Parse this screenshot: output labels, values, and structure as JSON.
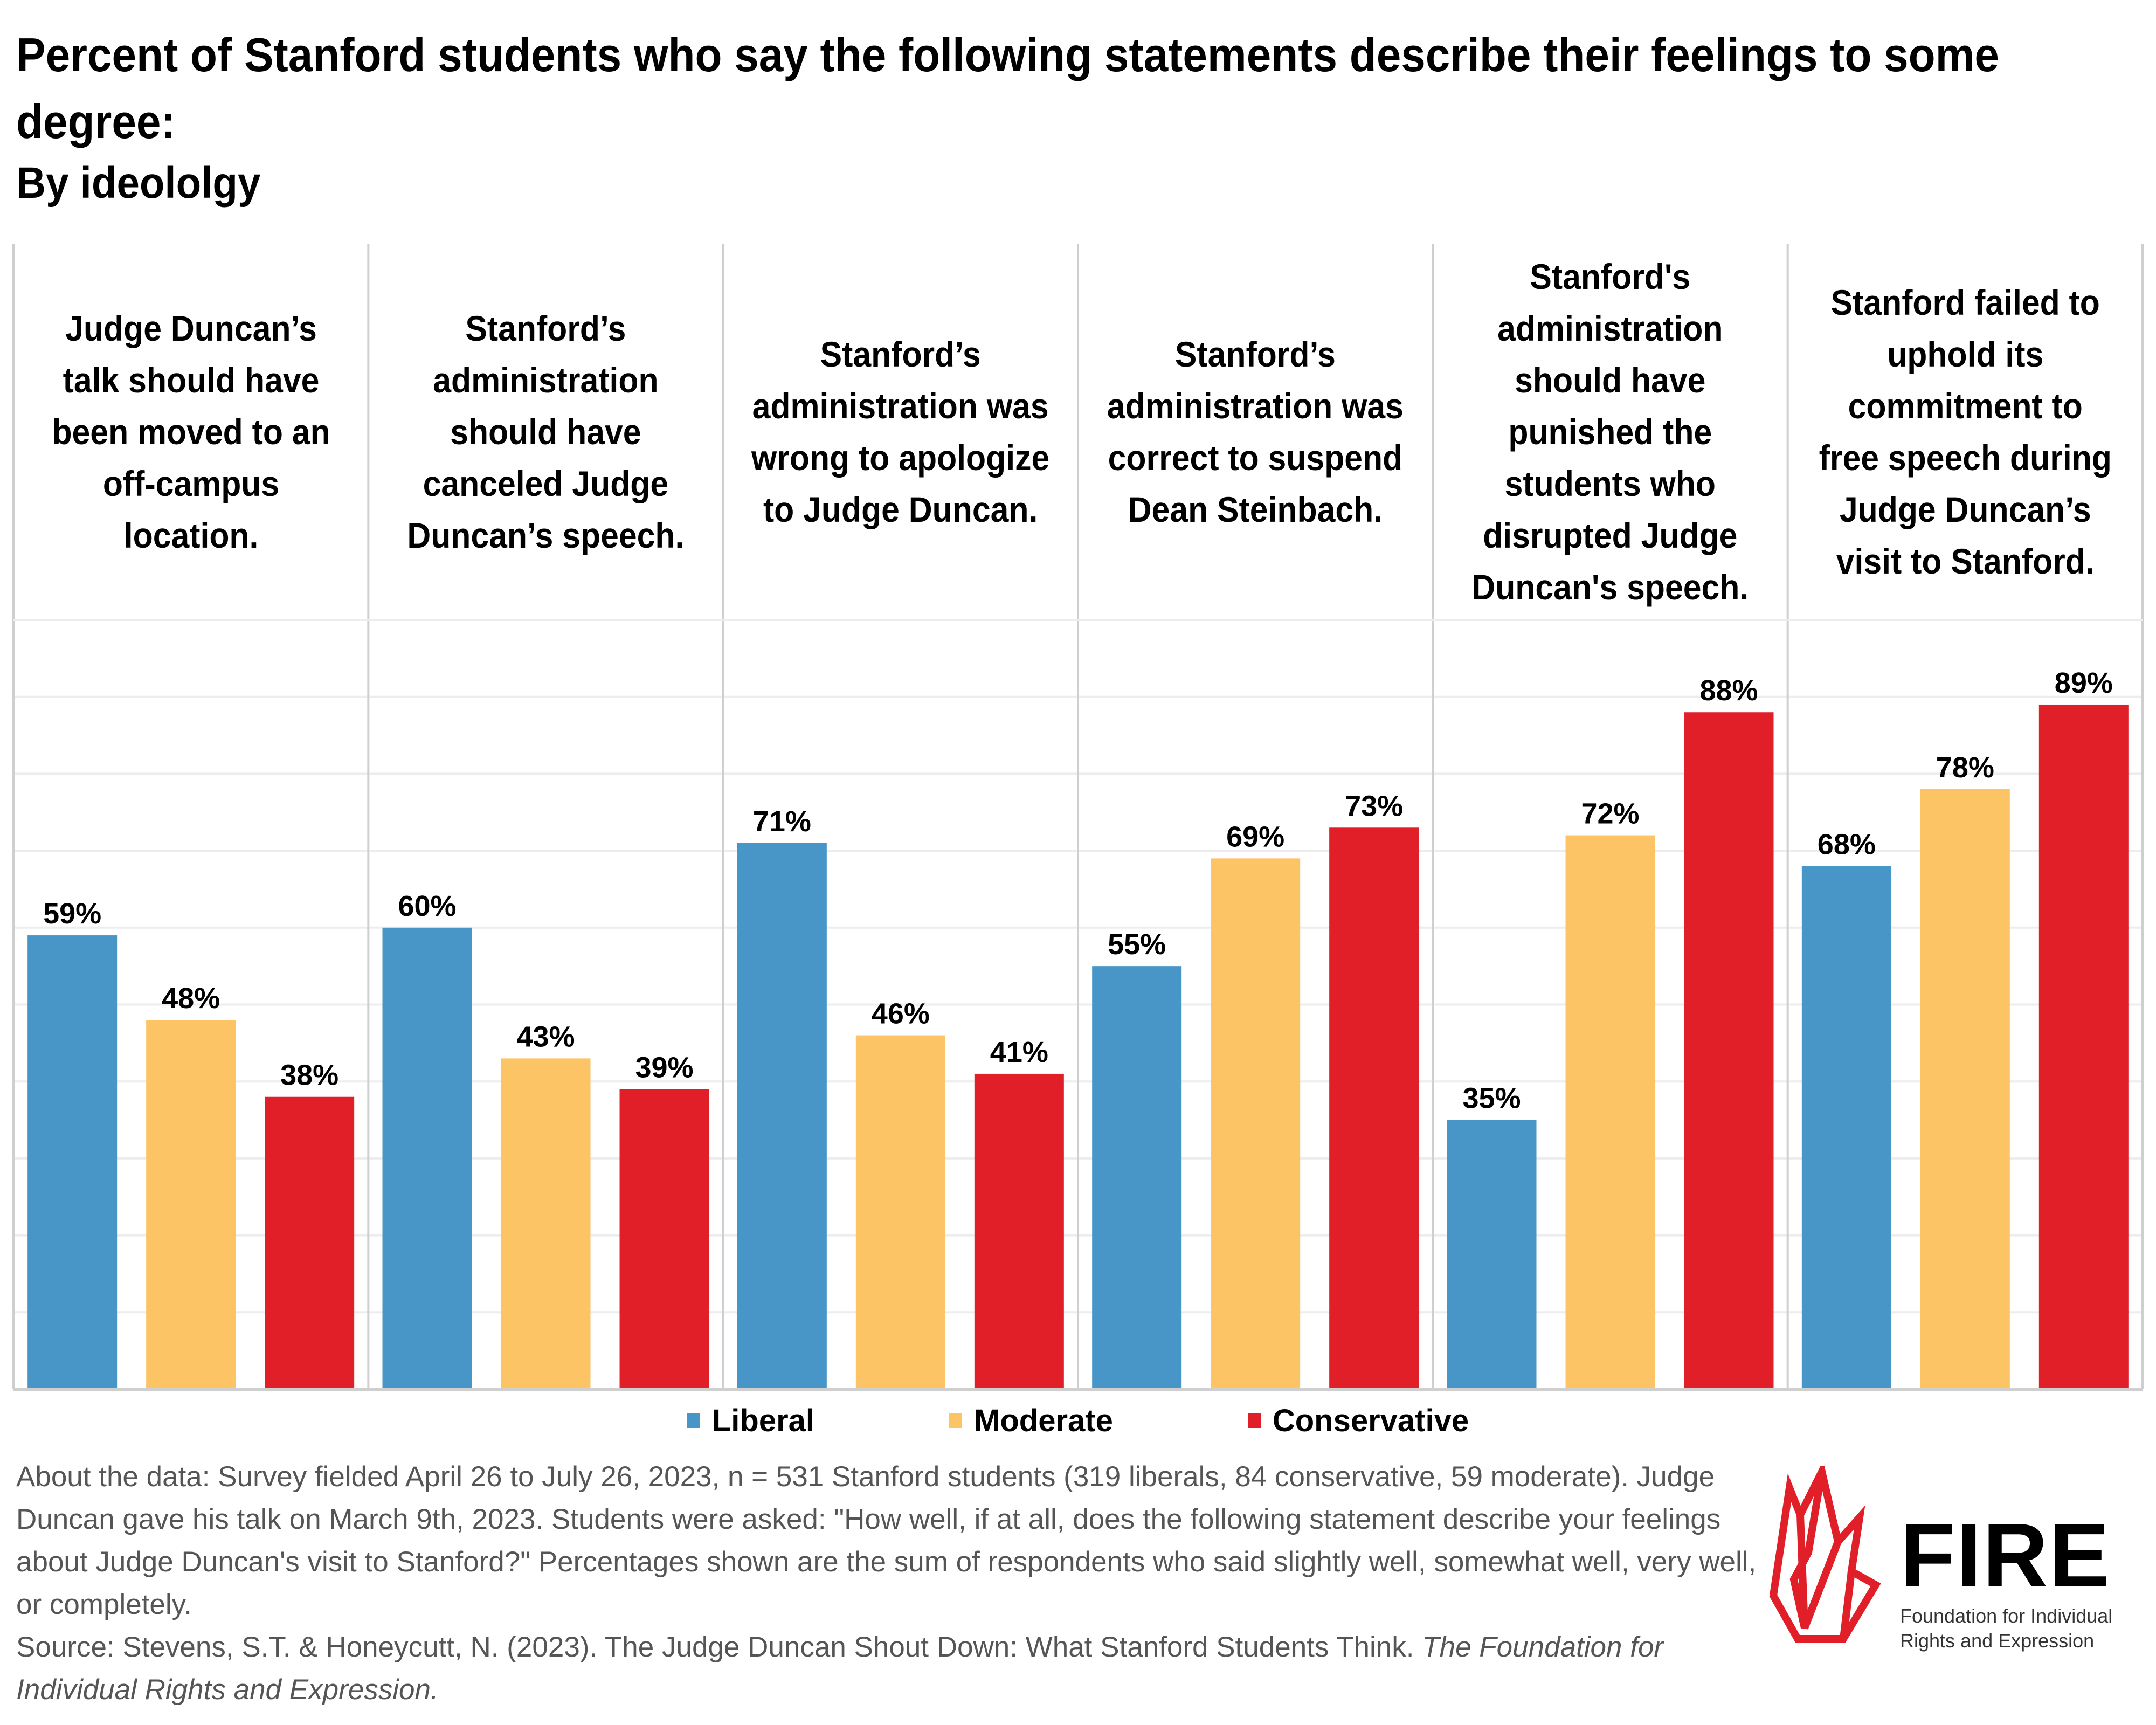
{
  "header": {
    "title": "Percent of Stanford students who say the following statements describe their feelings to some degree:",
    "subtitle": "By ideololgy"
  },
  "colors": {
    "liberal": "#4896C8",
    "moderate": "#FDC466",
    "conservative": "#E01F29",
    "gridline": "#EDEDED",
    "panel_border": "#CFCFCF",
    "footer_text": "#555555",
    "logo_red": "#E01F29"
  },
  "chart_data": {
    "type": "bar",
    "title": "Percent of Stanford students who say the following statements describe their feelings to some degree:",
    "subtitle": "By ideololgy",
    "xlabel": "",
    "ylabel": "",
    "ylim": [
      0,
      100
    ],
    "grid": true,
    "gridline_step": 10,
    "legend_position": "bottom",
    "categories": [
      [
        "Judge Duncan’s",
        "talk should have",
        "been moved to an",
        "off-campus",
        "location."
      ],
      [
        "Stanford’s",
        "administration",
        "should have",
        "canceled Judge",
        "Duncan’s speech."
      ],
      [
        "Stanford’s",
        "administration was",
        "wrong to apologize",
        "to Judge Duncan."
      ],
      [
        "Stanford’s",
        "administration was",
        "correct to suspend",
        "Dean Steinbach."
      ],
      [
        "Stanford's",
        "administration",
        "should have",
        "punished the",
        "students who",
        "disrupted Judge",
        "Duncan's speech."
      ],
      [
        "Stanford failed to",
        "uphold its",
        "commitment to",
        "free speech during",
        "Judge Duncan’s",
        "visit to Stanford."
      ]
    ],
    "series": [
      {
        "name": "Liberal",
        "color": "#4896C8",
        "values": [
          59,
          60,
          71,
          55,
          35,
          68
        ],
        "labels": [
          "59%",
          "60%",
          "71%",
          "55%",
          "35%",
          "68%"
        ]
      },
      {
        "name": "Moderate",
        "color": "#FDC466",
        "values": [
          48,
          43,
          46,
          69,
          72,
          78
        ],
        "labels": [
          "48%",
          "43%",
          "46%",
          "69%",
          "72%",
          "78%"
        ]
      },
      {
        "name": "Conservative",
        "color": "#E01F29",
        "values": [
          38,
          39,
          41,
          73,
          88,
          89
        ],
        "labels": [
          "38%",
          "39%",
          "41%",
          "73%",
          "88%",
          "89%"
        ]
      }
    ]
  },
  "legend": {
    "items": [
      {
        "label": "Liberal",
        "color": "#4896C8"
      },
      {
        "label": "Moderate",
        "color": "#FDC466"
      },
      {
        "label": "Conservative",
        "color": "#E01F29"
      }
    ]
  },
  "footer": {
    "about": "About the data: Survey fielded April 26 to July 26, 2023, n = 531 Stanford students (319 liberals, 84 conservative, 59 moderate). Judge Duncan gave his talk on March 9th, 2023. Students were asked: \"How well, if at all, does the following statement describe your feelings about Judge Duncan's visit to Stanford?\" Percentages shown are the sum of respondents who said slightly well, somewhat well, very well, or completely.",
    "source_prefix": "Source: Stevens, S.T. & Honeycutt, N. (2023). The Judge Duncan Shout Down: What Stanford Students Think. ",
    "source_italic": "The Foundation for Individual Rights and Expression."
  },
  "logo": {
    "wordmark": "FIRE",
    "tagline_line1": "Foundation for Individual",
    "tagline_line2": "Rights and Expression",
    "icon": "flame-icon"
  }
}
